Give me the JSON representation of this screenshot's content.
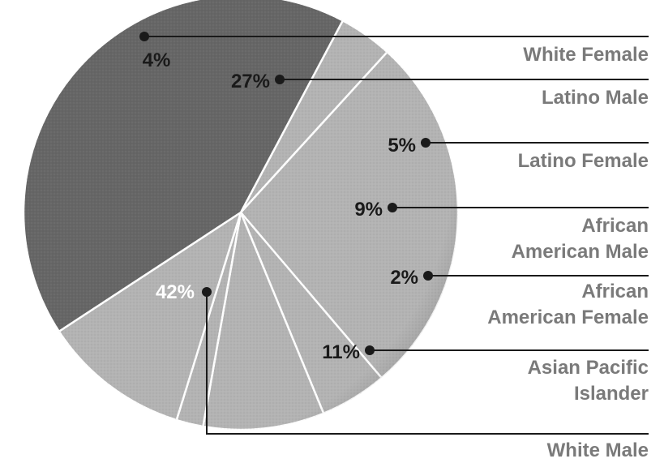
{
  "chart_data": {
    "type": "pie",
    "slices": [
      {
        "label": "White Female",
        "value": 4,
        "value_label": "4%"
      },
      {
        "label": "Latino Male",
        "value": 27,
        "value_label": "27%"
      },
      {
        "label": "Latino Female",
        "value": 5,
        "value_label": "5%"
      },
      {
        "label": "African American Male",
        "value": 9,
        "value_label": "9%",
        "label_lines": [
          "African",
          "American Male"
        ]
      },
      {
        "label": "African American Female",
        "value": 2,
        "value_label": "2%",
        "label_lines": [
          "African",
          "American Female"
        ]
      },
      {
        "label": "Asian Pacific Islander",
        "value": 11,
        "value_label": "11%",
        "label_lines": [
          "Asian Pacific",
          "Islander"
        ]
      },
      {
        "label": "White Male",
        "value": 42,
        "value_label": "42%"
      }
    ],
    "colors": {
      "main_slice": "#666666",
      "other_slices": "#b3b3b3",
      "separator": "#ffffff",
      "leader": "#1a1a1a",
      "label_text": "#7a7a7a"
    }
  }
}
